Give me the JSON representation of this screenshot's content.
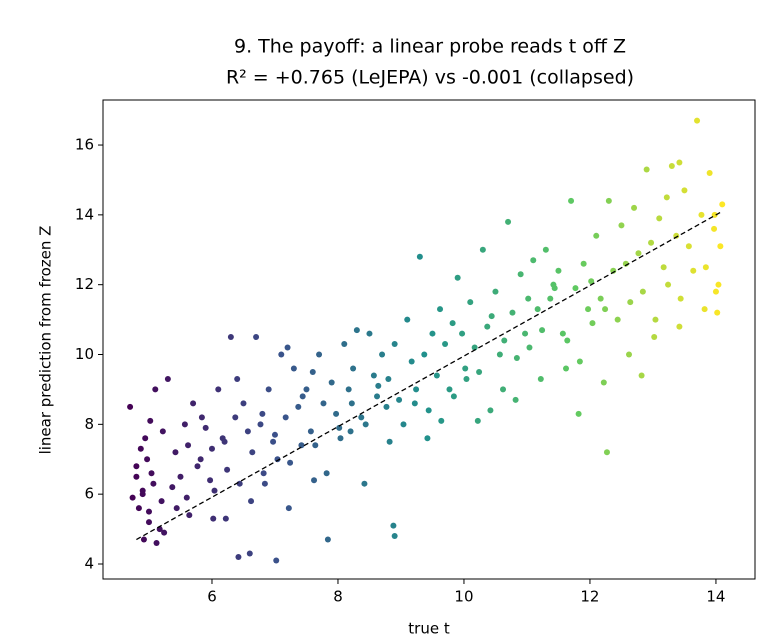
{
  "chart_data": {
    "type": "scatter",
    "title": "9. The payoff: a linear probe reads t off Z",
    "subtitle": "R² = +0.765 (LeJEPA)  vs  -0.001 (collapsed)",
    "x_label": "true t",
    "y_label": "linear prediction from frozen Z",
    "xlim": [
      4.27,
      14.62
    ],
    "ylim": [
      3.57,
      17.29
    ],
    "xticks": [
      6,
      8,
      10,
      12,
      14
    ],
    "yticks": [
      4,
      6,
      8,
      10,
      12,
      14,
      16
    ],
    "colormap": [
      "#440154",
      "#3b528b",
      "#21918c",
      "#5ec962",
      "#fde725"
    ],
    "fit_line": {
      "color": "#000000",
      "x": [
        4.8,
        14.1
      ],
      "y": [
        4.7,
        14.1
      ]
    },
    "x": [
      4.8,
      4.87,
      4.74,
      4.92,
      4.7,
      4.9,
      4.97,
      4.84,
      5.02,
      4.8,
      5.0,
      5.07,
      4.94,
      5.12,
      4.9,
      5.1,
      5.17,
      5.04,
      5.22,
      5.0,
      5.3,
      5.37,
      5.24,
      5.42,
      5.2,
      5.5,
      5.57,
      5.44,
      5.62,
      5.7,
      5.77,
      5.64,
      5.82,
      5.6,
      5.9,
      5.97,
      5.84,
      6.02,
      6.1,
      6.17,
      6.04,
      6.22,
      6.0,
      6.3,
      6.37,
      6.24,
      6.42,
      6.2,
      6.5,
      6.57,
      6.44,
      6.62,
      6.4,
      6.7,
      6.77,
      6.64,
      6.82,
      6.6,
      6.9,
      6.97,
      6.84,
      7.02,
      6.8,
      7.1,
      7.17,
      7.04,
      7.22,
      7.0,
      7.3,
      7.37,
      7.24,
      7.42,
      7.2,
      7.5,
      7.57,
      7.44,
      7.62,
      7.7,
      7.77,
      7.64,
      7.82,
      7.6,
      7.9,
      7.97,
      7.84,
      8.02,
      8.1,
      8.17,
      8.04,
      8.22,
      8.3,
      8.37,
      8.24,
      8.42,
      8.2,
      8.5,
      8.57,
      8.44,
      8.62,
      8.7,
      8.77,
      8.64,
      8.82,
      8.9,
      8.97,
      8.88,
      8.9,
      8.8,
      9.1,
      9.17,
      9.04,
      9.22,
      9.3,
      9.37,
      9.24,
      9.42,
      9.5,
      9.57,
      9.44,
      9.62,
      9.7,
      9.77,
      9.64,
      9.82,
      9.9,
      9.97,
      9.84,
      10.02,
      10.1,
      10.17,
      10.04,
      10.22,
      10.3,
      10.37,
      10.24,
      10.42,
      10.5,
      10.57,
      10.44,
      10.62,
      10.7,
      10.77,
      10.64,
      10.82,
      10.9,
      10.97,
      10.84,
      11.02,
      11.1,
      11.17,
      11.04,
      11.22,
      11.3,
      11.37,
      11.24,
      11.42,
      11.5,
      11.57,
      11.44,
      11.62,
      11.7,
      11.77,
      11.64,
      11.82,
      11.9,
      11.97,
      11.84,
      12.02,
      12.1,
      12.17,
      12.04,
      12.22,
      12.3,
      12.37,
      12.24,
      12.27,
      12.5,
      12.57,
      12.44,
      12.62,
      12.7,
      12.77,
      12.64,
      12.82,
      12.9,
      12.97,
      12.84,
      13.02,
      13.1,
      13.17,
      13.04,
      13.22,
      13.3,
      13.37,
      13.24,
      13.42,
      13.5,
      13.57,
      13.44,
      13.42,
      13.7,
      13.77,
      13.64,
      13.82,
      13.9,
      13.97,
      13.84,
      14.02,
      14.1,
      14.07,
      14.04,
      13.98,
      14.0
    ],
    "y": [
      6.5,
      7.3,
      5.9,
      4.7,
      8.5,
      6.1,
      7.0,
      5.6,
      8.1,
      6.8,
      5.2,
      6.3,
      7.6,
      4.6,
      6.0,
      9.0,
      5.0,
      6.6,
      7.8,
      5.5,
      9.3,
      6.2,
      4.9,
      7.2,
      5.8,
      6.5,
      8.0,
      5.6,
      7.4,
      8.6,
      6.8,
      5.4,
      7.0,
      5.9,
      7.9,
      6.4,
      8.2,
      5.3,
      9.0,
      7.6,
      6.1,
      5.3,
      7.3,
      10.5,
      8.2,
      6.7,
      4.2,
      7.5,
      8.6,
      7.8,
      6.3,
      5.8,
      9.3,
      10.5,
      8.0,
      7.2,
      6.6,
      4.3,
      9.0,
      7.5,
      6.3,
      4.1,
      8.3,
      10.0,
      8.2,
      7.0,
      5.6,
      7.7,
      9.6,
      8.5,
      6.9,
      7.4,
      10.2,
      9.0,
      7.8,
      8.8,
      6.4,
      10.0,
      8.6,
      7.4,
      6.6,
      9.5,
      9.2,
      8.3,
      4.7,
      7.9,
      10.3,
      9.0,
      7.6,
      8.6,
      10.7,
      8.2,
      9.6,
      6.3,
      7.8,
      10.6,
      9.4,
      8.0,
      8.8,
      10.0,
      8.5,
      9.1,
      7.5,
      10.3,
      8.7,
      5.1,
      4.8,
      9.3,
      11.0,
      9.8,
      8.0,
      8.6,
      12.8,
      10.0,
      9.0,
      7.6,
      10.6,
      9.4,
      8.4,
      11.3,
      10.3,
      9.0,
      8.1,
      10.9,
      12.2,
      10.6,
      8.8,
      9.6,
      11.5,
      10.2,
      9.3,
      8.1,
      13.0,
      10.8,
      9.5,
      8.4,
      11.8,
      10.0,
      11.1,
      9.0,
      13.8,
      11.2,
      10.4,
      8.7,
      12.3,
      10.6,
      9.9,
      11.6,
      12.7,
      11.3,
      10.2,
      9.3,
      13.0,
      11.6,
      10.7,
      12.0,
      12.4,
      10.6,
      11.9,
      9.6,
      14.4,
      11.9,
      10.4,
      8.3,
      12.6,
      11.3,
      9.8,
      12.1,
      13.4,
      11.6,
      10.9,
      9.2,
      14.4,
      12.4,
      11.3,
      7.2,
      13.7,
      12.6,
      11.0,
      10.0,
      14.2,
      12.9,
      11.5,
      9.4,
      15.3,
      13.2,
      11.8,
      10.5,
      13.9,
      12.5,
      11.0,
      14.5,
      15.4,
      13.4,
      12.0,
      10.8,
      14.7,
      13.1,
      11.6,
      15.5,
      16.7,
      14.0,
      12.4,
      11.3,
      15.2,
      13.6,
      12.5,
      11.2,
      14.3,
      13.1,
      12.0,
      14.0,
      11.8
    ]
  }
}
